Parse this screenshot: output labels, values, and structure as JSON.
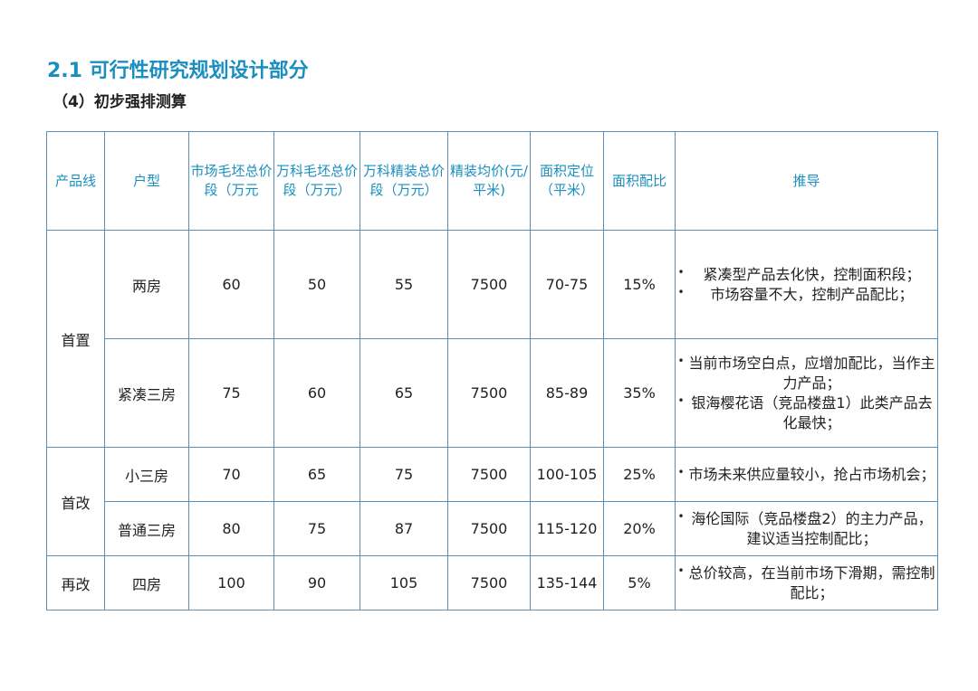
{
  "title": "2.1  可行性研究规划设计部分",
  "subtitle": "（4）初步强排测算",
  "headers": [
    "产品线",
    "户型",
    "市场毛坯总价段（万元",
    "万科毛坯总价段（万元）",
    "万科精装总价段（万元）",
    "精装均价(元/平米)",
    "面积定位（平米）",
    "面积配比",
    "推导"
  ],
  "groups": [
    "首置",
    "首改",
    "再改"
  ],
  "rows": [
    {
      "type": "两房",
      "market": "60",
      "vanke_rough": "50",
      "vanke_fine": "55",
      "avg_price": "7500",
      "area": "70-75",
      "ratio": "15%",
      "notes": [
        "紧凑型产品去化快，控制面积段；",
        "市场容量不大，控制产品配比；"
      ]
    },
    {
      "type": "紧凑三房",
      "market": "75",
      "vanke_rough": "60",
      "vanke_fine": "65",
      "avg_price": "7500",
      "area": "85-89",
      "ratio": "35%",
      "notes": [
        "当前市场空白点，应增加配比，当作主力产品；",
        "银海樱花语（竞品楼盘1）此类产品去化最快；"
      ]
    },
    {
      "type": "小三房",
      "market": "70",
      "vanke_rough": "65",
      "vanke_fine": "75",
      "avg_price": "7500",
      "area": "100-105",
      "ratio": "25%",
      "notes": [
        "市场未来供应量较小，抢占市场机会；"
      ]
    },
    {
      "type": "普通三房",
      "market": "80",
      "vanke_rough": "75",
      "vanke_fine": "87",
      "avg_price": "7500",
      "area": "115-120",
      "ratio": "20%",
      "notes": [
        "海伦国际（竞品楼盘2）的主力产品，建议适当控制配比；"
      ]
    },
    {
      "type": "四房",
      "market": "100",
      "vanke_rough": "90",
      "vanke_fine": "105",
      "avg_price": "7500",
      "area": "135-144",
      "ratio": "5%",
      "notes": [
        "总价较高，在当前市场下滑期，需控制配比；"
      ]
    }
  ],
  "colors": {
    "accent": "#1a8fbf",
    "border": "#5b8fb8",
    "text": "#222222"
  }
}
